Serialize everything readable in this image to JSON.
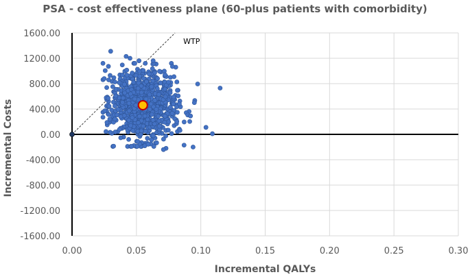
{
  "chart_data": {
    "type": "scatter",
    "title": "PSA - cost effectiveness plane (60-plus patients with comorbidity)",
    "xlabel": "Incremental QALYs",
    "ylabel": "Incremental Costs",
    "xlim": [
      0,
      0.3
    ],
    "ylim": [
      -1600,
      1600
    ],
    "x_ticks": [
      "0.00",
      "0.05",
      "0.10",
      "0.15",
      "0.20",
      "0.25",
      "0.30"
    ],
    "y_ticks": [
      "1600.00",
      "1200.00",
      "800.00",
      "400.00",
      "0.00",
      "-400.00",
      "-800.00",
      "-1200.00",
      "-1600.00"
    ],
    "grid": true,
    "legend": "none",
    "wtp_label": "WTP",
    "wtp_threshold": 20000,
    "origin_point": {
      "x": 0,
      "y": 0
    },
    "mean_point": {
      "x": 0.055,
      "y": 460
    },
    "psa_cloud": {
      "mean_x": 0.055,
      "mean_y": 460,
      "sd_x": 0.012,
      "sd_y": 270,
      "n": 1000
    },
    "outlier_points": [
      {
        "x": 0.03,
        "y": 1310
      },
      {
        "x": 0.042,
        "y": 1230
      },
      {
        "x": 0.045,
        "y": 1200
      },
      {
        "x": 0.052,
        "y": 1160
      },
      {
        "x": 0.063,
        "y": 1160
      },
      {
        "x": 0.078,
        "y": 1070
      },
      {
        "x": 0.115,
        "y": 730
      },
      {
        "x": 0.109,
        "y": 10
      },
      {
        "x": 0.104,
        "y": 110
      },
      {
        "x": 0.094,
        "y": -200
      },
      {
        "x": 0.087,
        "y": -170
      },
      {
        "x": 0.073,
        "y": -220
      },
      {
        "x": 0.071,
        "y": -240
      },
      {
        "x": 0.044,
        "y": -80
      },
      {
        "x": 0.095,
        "y": 500
      },
      {
        "x": 0.092,
        "y": 290
      },
      {
        "x": 0.025,
        "y": 880
      },
      {
        "x": 0.028,
        "y": 570
      }
    ],
    "colors": {
      "points": "#4472C4",
      "point_edge": "#2F5597",
      "mean_fill": "#FFC000",
      "mean_edge": "#C00000",
      "axis": "#000000",
      "grid": "#D9D9D9",
      "text": "#595959"
    }
  }
}
